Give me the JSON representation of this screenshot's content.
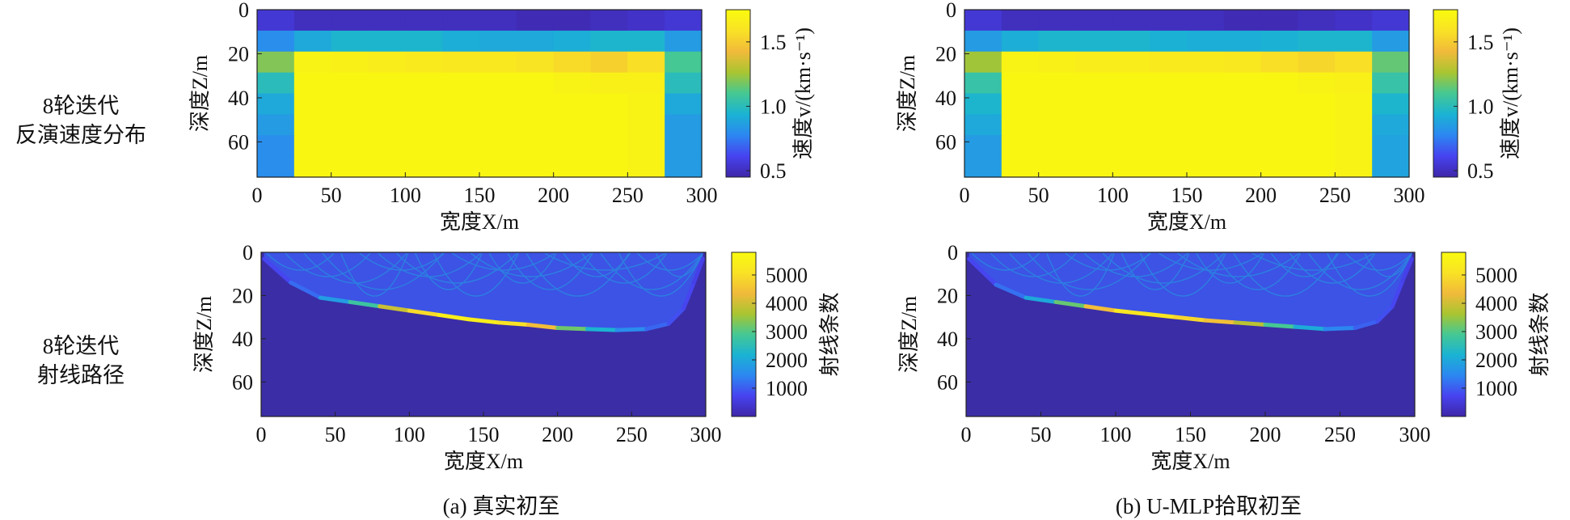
{
  "row_labels": [
    {
      "line1": "8轮迭代",
      "line2": "反演速度分布"
    },
    {
      "line1": "8轮迭代",
      "line2": "射线路径"
    }
  ],
  "captions": {
    "a": "(a) 真实初至",
    "b": "(b) U-MLP拾取初至"
  },
  "colors": {
    "parula": [
      "#3e26a8",
      "#4743f0",
      "#2c87f1",
      "#1ab3d3",
      "#45c893",
      "#a9c531",
      "#f1ba3a",
      "#f9e225",
      "#f9fb0e"
    ],
    "background_ray": "#3b2da6"
  },
  "chart_data": [
    {
      "type": "heatmap",
      "panel": "a-top",
      "title": "",
      "xlabel": "宽度X/m",
      "ylabel": "深度Z/m",
      "colorbar_label": "速度v/(km·s⁻¹)",
      "xticks": [
        "0",
        "50",
        "100",
        "150",
        "200",
        "250",
        "300"
      ],
      "yticks": [
        "0",
        "20",
        "40",
        "60"
      ],
      "cbticks": [
        "0.5",
        "1.0",
        "1.5"
      ],
      "xlim": [
        0,
        300
      ],
      "ylim": [
        0,
        76
      ],
      "clim": [
        0.45,
        1.75
      ],
      "values": [
        [
          0.55,
          0.5,
          0.5,
          0.5,
          0.5,
          0.5,
          0.5,
          0.48,
          0.48,
          0.5,
          0.52,
          0.55
        ],
        [
          0.8,
          0.9,
          0.95,
          0.95,
          0.95,
          0.92,
          0.9,
          0.9,
          0.92,
          0.95,
          0.95,
          0.85
        ],
        [
          1.2,
          1.7,
          1.68,
          1.66,
          1.64,
          1.62,
          1.62,
          1.6,
          1.56,
          1.52,
          1.58,
          1.1
        ],
        [
          1.0,
          1.72,
          1.72,
          1.72,
          1.72,
          1.72,
          1.72,
          1.72,
          1.7,
          1.68,
          1.68,
          1.0
        ],
        [
          0.9,
          1.72,
          1.72,
          1.72,
          1.72,
          1.72,
          1.72,
          1.72,
          1.72,
          1.72,
          1.7,
          0.9
        ],
        [
          0.85,
          1.72,
          1.72,
          1.72,
          1.72,
          1.72,
          1.72,
          1.72,
          1.72,
          1.72,
          1.7,
          0.85
        ],
        [
          0.8,
          1.72,
          1.72,
          1.72,
          1.72,
          1.72,
          1.72,
          1.72,
          1.72,
          1.72,
          1.7,
          0.85
        ],
        [
          0.8,
          1.72,
          1.72,
          1.72,
          1.72,
          1.72,
          1.72,
          1.72,
          1.72,
          1.72,
          1.7,
          0.85
        ]
      ]
    },
    {
      "type": "heatmap",
      "panel": "b-top",
      "title": "",
      "xlabel": "宽度X/m",
      "ylabel": "深度Z/m",
      "colorbar_label": "速度v/(km·s⁻¹)",
      "xticks": [
        "0",
        "50",
        "100",
        "150",
        "200",
        "250",
        "300"
      ],
      "yticks": [
        "0",
        "20",
        "40",
        "60"
      ],
      "cbticks": [
        "0.5",
        "1.0",
        "1.5"
      ],
      "xlim": [
        0,
        300
      ],
      "ylim": [
        0,
        76
      ],
      "clim": [
        0.45,
        1.75
      ],
      "values": [
        [
          0.55,
          0.5,
          0.5,
          0.5,
          0.5,
          0.5,
          0.5,
          0.48,
          0.48,
          0.5,
          0.52,
          0.55
        ],
        [
          0.85,
          0.92,
          0.95,
          0.95,
          0.95,
          0.93,
          0.92,
          0.92,
          0.93,
          0.95,
          0.95,
          0.85
        ],
        [
          1.25,
          1.7,
          1.68,
          1.66,
          1.66,
          1.64,
          1.64,
          1.62,
          1.58,
          1.54,
          1.58,
          1.15
        ],
        [
          1.05,
          1.72,
          1.72,
          1.72,
          1.72,
          1.72,
          1.72,
          1.72,
          1.72,
          1.7,
          1.68,
          1.05
        ],
        [
          0.95,
          1.72,
          1.72,
          1.72,
          1.72,
          1.72,
          1.72,
          1.72,
          1.72,
          1.72,
          1.7,
          0.95
        ],
        [
          0.9,
          1.72,
          1.72,
          1.72,
          1.72,
          1.72,
          1.72,
          1.72,
          1.72,
          1.72,
          1.7,
          0.9
        ],
        [
          0.85,
          1.72,
          1.72,
          1.72,
          1.72,
          1.72,
          1.72,
          1.72,
          1.72,
          1.72,
          1.7,
          0.88
        ],
        [
          0.85,
          1.72,
          1.72,
          1.72,
          1.72,
          1.72,
          1.72,
          1.72,
          1.72,
          1.72,
          1.7,
          0.88
        ]
      ]
    },
    {
      "type": "heatmap",
      "panel": "a-bottom",
      "title": "",
      "xlabel": "宽度X/m",
      "ylabel": "深度Z/m",
      "colorbar_label": "射线条数",
      "xticks": [
        "0",
        "50",
        "100",
        "150",
        "200",
        "250",
        "300"
      ],
      "yticks": [
        "0",
        "20",
        "40",
        "60"
      ],
      "cbticks": [
        "1000",
        "2000",
        "3000",
        "4000",
        "5000"
      ],
      "xlim": [
        0,
        300
      ],
      "ylim": [
        0,
        76
      ],
      "clim": [
        0,
        5800
      ],
      "ray_front": {
        "x": [
          2,
          20,
          40,
          60,
          80,
          100,
          120,
          140,
          160,
          180,
          200,
          220,
          240,
          260,
          275,
          285,
          292,
          298
        ],
        "z": [
          3,
          14,
          21,
          23,
          25,
          27,
          29,
          31,
          32.5,
          33.5,
          35,
          35.5,
          36,
          35.5,
          33,
          26,
          14,
          3
        ],
        "count": [
          600,
          900,
          1400,
          2200,
          3300,
          4600,
          5300,
          5600,
          5200,
          5000,
          3800,
          2600,
          1800,
          1300,
          900,
          800,
          700,
          600
        ]
      }
    },
    {
      "type": "heatmap",
      "panel": "b-bottom",
      "title": "",
      "xlabel": "宽度X/m",
      "ylabel": "深度Z/m",
      "colorbar_label": "射线条数",
      "xticks": [
        "0",
        "50",
        "100",
        "150",
        "200",
        "250",
        "300"
      ],
      "yticks": [
        "0",
        "20",
        "40",
        "60"
      ],
      "cbticks": [
        "1000",
        "2000",
        "3000",
        "4000",
        "5000"
      ],
      "xlim": [
        0,
        300
      ],
      "ylim": [
        0,
        76
      ],
      "clim": [
        0,
        5800
      ],
      "ray_front": {
        "x": [
          2,
          20,
          40,
          60,
          80,
          100,
          120,
          140,
          160,
          180,
          200,
          220,
          240,
          260,
          275,
          285,
          292,
          298
        ],
        "z": [
          3,
          15,
          21,
          23,
          25,
          27,
          28.5,
          30,
          31.5,
          32.5,
          33.5,
          34.5,
          35.5,
          35,
          32,
          25,
          13,
          3
        ],
        "count": [
          600,
          900,
          1500,
          2500,
          3800,
          5000,
          5400,
          5000,
          4700,
          4200,
          3400,
          2400,
          1700,
          1200,
          900,
          800,
          700,
          600
        ]
      }
    }
  ]
}
